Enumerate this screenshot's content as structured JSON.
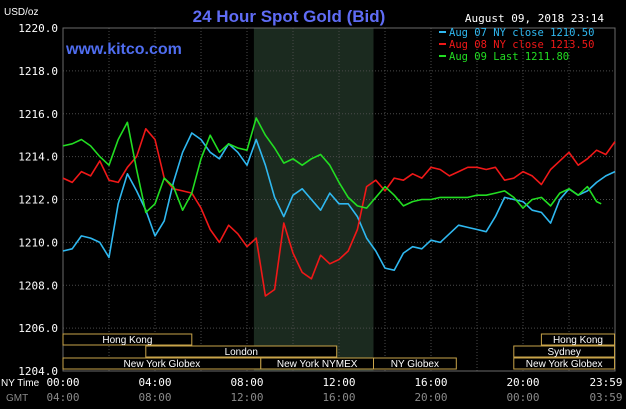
{
  "header": {
    "title": "24 Hour Spot Gold (Bid)",
    "unit": "USD/oz",
    "timestamp": "August 09, 2018 23:14",
    "watermark": "www.kitco.com"
  },
  "axis": {
    "ny_time_label": "NY Time",
    "gmt_label": "GMT",
    "ny_ticks": [
      "00:00",
      "04:00",
      "08:00",
      "12:00",
      "16:00",
      "20:00",
      "23:59"
    ],
    "gmt_ticks": [
      "04:00",
      "08:00",
      "12:00",
      "16:00",
      "20:00",
      "00:00",
      "03:59"
    ]
  },
  "sessions": [
    {
      "label": "Hong Kong",
      "row": 0,
      "start": 0,
      "end": 5.6
    },
    {
      "label": "Hong Kong",
      "row": 0,
      "start": 20.8,
      "end": 23.98
    },
    {
      "label": "London",
      "row": 1,
      "start": 3.6,
      "end": 11.9
    },
    {
      "label": "Sydney",
      "row": 1,
      "start": 19.6,
      "end": 23.98
    },
    {
      "label": "New York Globex",
      "row": 2,
      "start": 0,
      "end": 8.6
    },
    {
      "label": "New York NYMEX",
      "row": 2,
      "start": 8.6,
      "end": 13.5
    },
    {
      "label": "NY Globex",
      "row": 2,
      "start": 13.5,
      "end": 17.1
    },
    {
      "label": "New York Globex",
      "row": 2,
      "start": 19.6,
      "end": 23.98
    }
  ],
  "chart_data": {
    "type": "line",
    "title": "24 Hour Spot Gold (Bid)",
    "ylabel": "USD/oz",
    "xlabel": "NY Time",
    "xlim": [
      0,
      24
    ],
    "ylim": [
      1204,
      1220
    ],
    "y_ticks": [
      "1204.0",
      "1206.0",
      "1208.0",
      "1210.0",
      "1212.0",
      "1214.0",
      "1216.0",
      "1218.0",
      "1220.0"
    ],
    "highlight_band": [
      8.3,
      13.5
    ],
    "grid": true,
    "legend_position": "top-right",
    "series": [
      {
        "name": "Aug 07 NY close 1210.50",
        "color": "#2fb8f0",
        "x": [
          0,
          0.4,
          0.8,
          1.2,
          1.6,
          2.0,
          2.4,
          2.8,
          3.2,
          3.6,
          4.0,
          4.4,
          4.8,
          5.2,
          5.6,
          6.0,
          6.4,
          6.8,
          7.2,
          7.6,
          8.0,
          8.4,
          8.8,
          9.2,
          9.6,
          10.0,
          10.4,
          10.8,
          11.2,
          11.6,
          12.0,
          12.4,
          12.8,
          13.2,
          13.6,
          14.0,
          14.4,
          14.8,
          15.2,
          15.6,
          16.0,
          16.4,
          16.8,
          17.2,
          17.6,
          18.0,
          18.4,
          18.8,
          19.2,
          19.6,
          20.0,
          20.4,
          20.8,
          21.2,
          21.6,
          22.0,
          22.4,
          22.8,
          23.2,
          23.6,
          24.0
        ],
        "y": [
          1209.6,
          1209.7,
          1210.3,
          1210.2,
          1210.0,
          1209.3,
          1211.8,
          1213.2,
          1212.4,
          1211.5,
          1210.3,
          1211.0,
          1212.8,
          1214.2,
          1215.1,
          1214.8,
          1214.2,
          1213.9,
          1214.6,
          1214.2,
          1213.6,
          1214.8,
          1213.6,
          1212.1,
          1211.2,
          1212.2,
          1212.5,
          1212.0,
          1211.5,
          1212.3,
          1211.8,
          1211.8,
          1211.2,
          1210.2,
          1209.6,
          1208.8,
          1208.7,
          1209.5,
          1209.8,
          1209.7,
          1210.1,
          1210.0,
          1210.4,
          1210.8,
          1210.7,
          1210.6,
          1210.5,
          1211.2,
          1212.1,
          1212.0,
          1211.9,
          1211.5,
          1211.4,
          1210.9,
          1212.0,
          1212.5,
          1212.2,
          1212.4,
          1212.8,
          1213.1,
          1213.3
        ]
      },
      {
        "name": "Aug 08 NY close 1213.50",
        "color": "#f01818",
        "x": [
          0,
          0.4,
          0.8,
          1.2,
          1.6,
          2.0,
          2.4,
          2.8,
          3.2,
          3.6,
          4.0,
          4.4,
          4.8,
          5.2,
          5.6,
          6.0,
          6.4,
          6.8,
          7.2,
          7.6,
          8.0,
          8.4,
          8.8,
          9.2,
          9.6,
          10.0,
          10.4,
          10.8,
          11.2,
          11.6,
          12.0,
          12.4,
          12.8,
          13.2,
          13.6,
          14.0,
          14.4,
          14.8,
          15.2,
          15.6,
          16.0,
          16.4,
          16.8,
          17.2,
          17.6,
          18.0,
          18.4,
          18.8,
          19.2,
          19.6,
          20.0,
          20.4,
          20.8,
          21.2,
          21.6,
          22.0,
          22.4,
          22.8,
          23.2,
          23.6,
          24.0
        ],
        "y": [
          1213.0,
          1212.8,
          1213.3,
          1213.1,
          1213.8,
          1212.9,
          1212.8,
          1213.5,
          1214.0,
          1215.3,
          1214.8,
          1213.0,
          1212.5,
          1212.4,
          1212.3,
          1211.6,
          1210.6,
          1210.0,
          1210.8,
          1210.4,
          1209.8,
          1210.2,
          1207.5,
          1207.8,
          1210.9,
          1209.5,
          1208.6,
          1208.3,
          1209.4,
          1209.0,
          1209.2,
          1209.6,
          1210.6,
          1212.6,
          1212.9,
          1212.4,
          1213.0,
          1212.9,
          1213.2,
          1213.0,
          1213.5,
          1213.4,
          1213.1,
          1213.3,
          1213.5,
          1213.5,
          1213.4,
          1213.5,
          1212.9,
          1213.0,
          1213.3,
          1213.1,
          1212.7,
          1213.4,
          1213.8,
          1214.2,
          1213.6,
          1213.9,
          1214.3,
          1214.1,
          1214.7
        ]
      },
      {
        "name": "Aug 09 Last 1211.80",
        "color": "#22dd22",
        "x": [
          0,
          0.4,
          0.8,
          1.2,
          1.6,
          2.0,
          2.4,
          2.8,
          3.2,
          3.6,
          4.0,
          4.4,
          4.8,
          5.2,
          5.6,
          6.0,
          6.4,
          6.8,
          7.2,
          7.6,
          8.0,
          8.4,
          8.8,
          9.2,
          9.6,
          10.0,
          10.4,
          10.8,
          11.2,
          11.6,
          12.0,
          12.4,
          12.8,
          13.2,
          13.6,
          14.0,
          14.4,
          14.8,
          15.2,
          15.6,
          16.0,
          16.4,
          16.8,
          17.2,
          17.6,
          18.0,
          18.4,
          18.8,
          19.2,
          19.6,
          20.0,
          20.4,
          20.8,
          21.2,
          21.6,
          22.0,
          22.4,
          22.8,
          23.2,
          23.4
        ],
        "y": [
          1214.5,
          1214.6,
          1214.8,
          1214.5,
          1214.0,
          1213.6,
          1214.8,
          1215.6,
          1213.4,
          1211.4,
          1211.8,
          1213.0,
          1212.6,
          1211.5,
          1212.3,
          1213.9,
          1215.0,
          1214.2,
          1214.6,
          1214.4,
          1214.3,
          1215.8,
          1215.0,
          1214.4,
          1213.7,
          1213.9,
          1213.6,
          1213.9,
          1214.1,
          1213.6,
          1212.8,
          1212.1,
          1211.7,
          1211.6,
          1212.1,
          1212.6,
          1212.2,
          1211.7,
          1211.9,
          1212.0,
          1212.0,
          1212.1,
          1212.1,
          1212.1,
          1212.1,
          1212.2,
          1212.2,
          1212.3,
          1212.4,
          1212.1,
          1211.6,
          1212.0,
          1212.1,
          1211.7,
          1212.3,
          1212.5,
          1212.2,
          1212.6,
          1211.9,
          1211.8
        ]
      }
    ]
  }
}
